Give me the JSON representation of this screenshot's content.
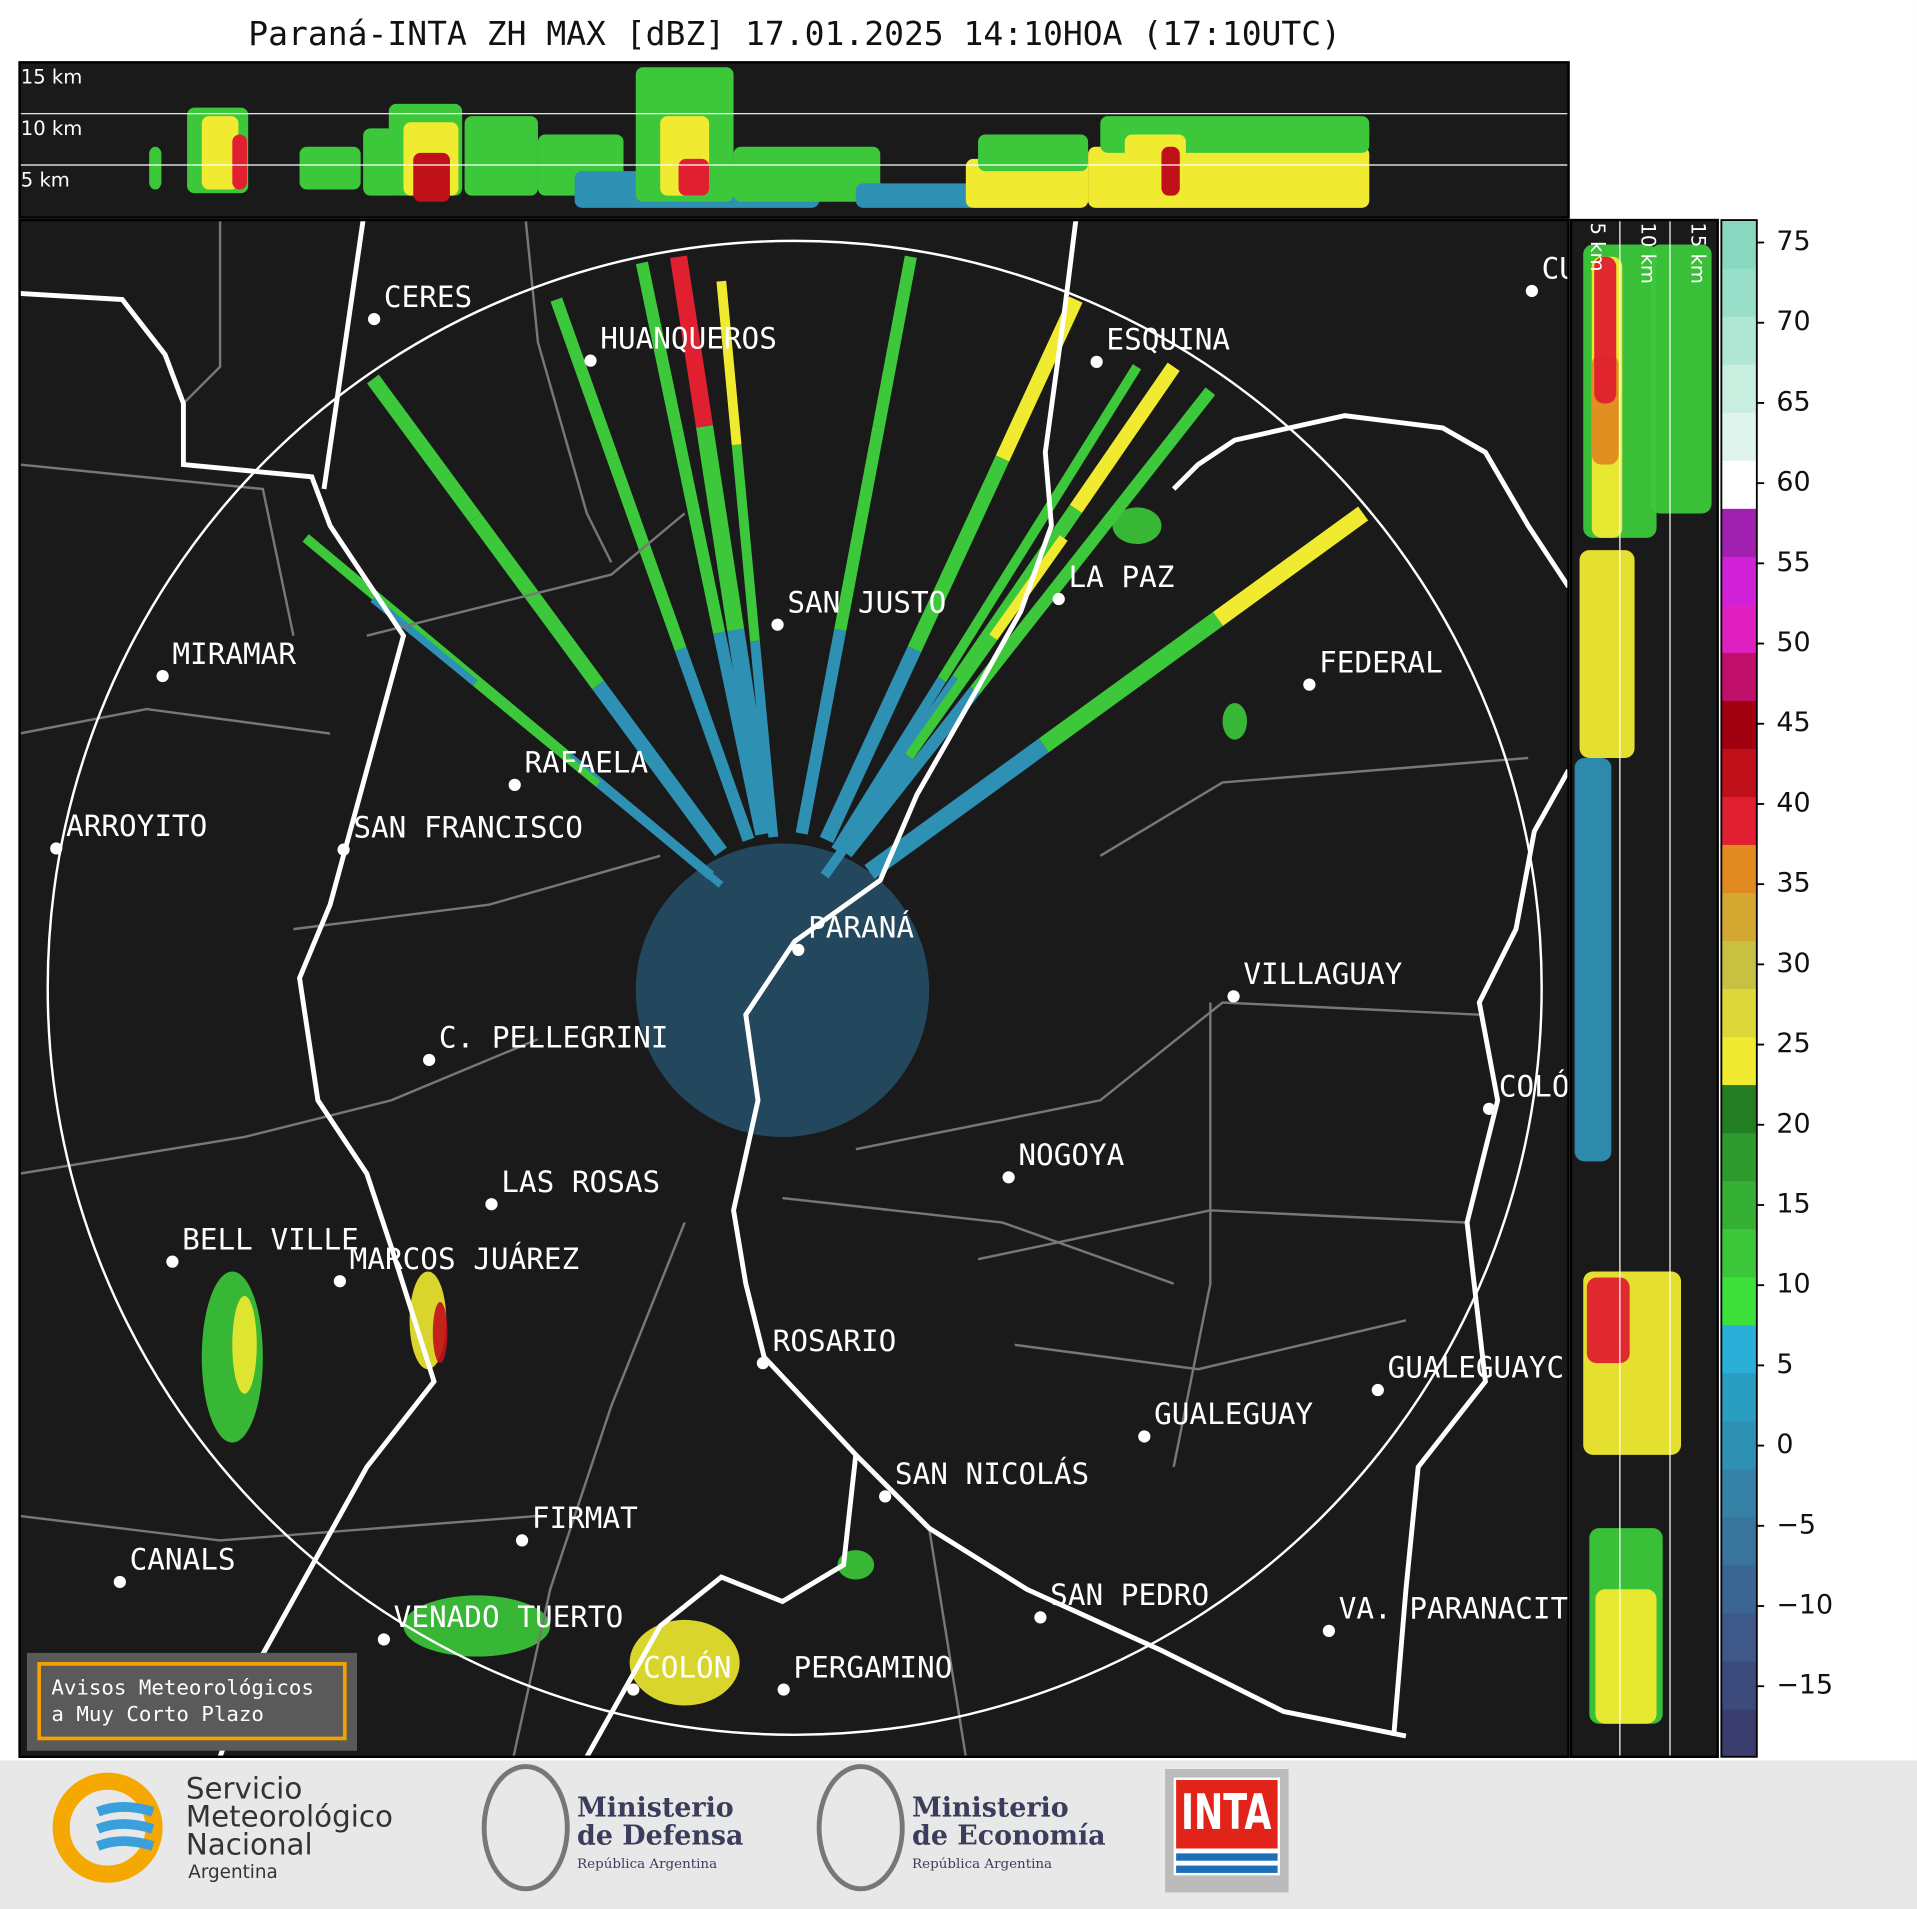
{
  "title": "Paraná-INTA ZH MAX [dBZ] 17.01.2025 14:10HOA (17:10UTC)",
  "top_section": {
    "height_labels": [
      "15 km",
      "10 km",
      "5 km"
    ]
  },
  "side_section": {
    "height_labels": [
      "5 km",
      "10 km",
      "15 km"
    ]
  },
  "map": {
    "cities": [
      "CERES",
      "HUANQUEROS",
      "ESQUINA",
      "CU",
      "SAN JUSTO",
      "LA PAZ",
      "MIRAMAR",
      "FEDERAL",
      "RAFAELA",
      "ARROYITO",
      "SAN FRANCISCO",
      "PARANÁ",
      "VILLAGUAY",
      "C. PELLEGRINI",
      "COLÓ",
      "NOGOYA",
      "LAS ROSAS",
      "BELL VILLE",
      "MARCOS JUÁREZ",
      "ROSARIO",
      "GUALEGUAYC",
      "GUALEGUAY",
      "SAN NICOLÁS",
      "FIRMAT",
      "CANALS",
      "SAN PEDRO",
      "VA. PARANACIT",
      "VENADO TUERTO",
      "COLÓN",
      "PERGAMINO"
    ]
  },
  "colorbar": {
    "lim": [
      -19.4,
      76.4
    ],
    "ticks": [
      75,
      70,
      65,
      60,
      55,
      50,
      45,
      40,
      35,
      30,
      25,
      20,
      15,
      10,
      5,
      0,
      {
        "value": -5,
        "label": "−5"
      },
      {
        "value": -10,
        "label": "−10"
      },
      {
        "value": -15,
        "label": "−15"
      }
    ],
    "colors": [
      "#3b3d6e",
      "#3d4a7c",
      "#3d5889",
      "#3b6693",
      "#38749c",
      "#3582a6",
      "#2e90b2",
      "#2a9ec0",
      "#2ab0d8",
      "#3ee03a",
      "#3cc83a",
      "#35b035",
      "#2c9a2c",
      "#237d23",
      "#f0ea30",
      "#dcd83a",
      "#c8c040",
      "#d4a830",
      "#e08a20",
      "#e02030",
      "#c0101a",
      "#a00010",
      "#c0106a",
      "#e020c0",
      "#d020d8",
      "#a020b0",
      "#ffffff",
      "#e0f4ee",
      "#c8eee0",
      "#b0e6d4",
      "#98dec8",
      "#88d8c0"
    ]
  },
  "warning_box": {
    "lines": [
      "Avisos Meteorológicos",
      "a Muy Corto Plazo"
    ]
  },
  "footer": {
    "smn": {
      "lines": [
        "Servicio",
        "Meteorológico",
        "Nacional"
      ],
      "country": "Argentina"
    },
    "defensa": {
      "lines": [
        "Ministerio",
        "de Defensa"
      ],
      "subtitle": "República Argentina"
    },
    "economia": {
      "lines": [
        "Ministerio",
        "de Economía"
      ],
      "subtitle": "República Argentina"
    },
    "inta": "INTA"
  }
}
